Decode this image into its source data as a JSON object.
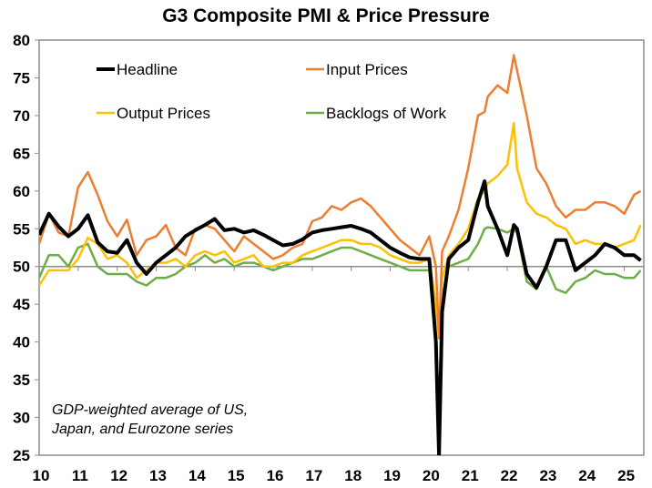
{
  "chart_data": {
    "type": "line",
    "title": "G3 Composite PMI & Price Pressure",
    "xlabel": "",
    "ylabel": "",
    "ylim": [
      25,
      80
    ],
    "yticks": [
      25,
      30,
      35,
      40,
      45,
      50,
      55,
      60,
      65,
      70,
      75,
      80
    ],
    "xlim": [
      2010.0,
      2025.5
    ],
    "xtick_labels": [
      "10",
      "11",
      "12",
      "13",
      "14",
      "15",
      "16",
      "17",
      "18",
      "19",
      "20",
      "21",
      "22",
      "23",
      "24",
      "25"
    ],
    "reference_line": 50,
    "grid": false,
    "legend_placement": "top-left, two columns",
    "annotation": [
      "GDP-weighted average of US,",
      "Japan, and Eurozone series"
    ],
    "x": [
      2010.0,
      2010.25,
      2010.5,
      2010.75,
      2011.0,
      2011.25,
      2011.5,
      2011.75,
      2012.0,
      2012.25,
      2012.5,
      2012.75,
      2013.0,
      2013.25,
      2013.5,
      2013.75,
      2014.0,
      2014.25,
      2014.5,
      2014.75,
      2015.0,
      2015.25,
      2015.5,
      2015.75,
      2016.0,
      2016.25,
      2016.5,
      2016.75,
      2017.0,
      2017.25,
      2017.5,
      2017.75,
      2018.0,
      2018.25,
      2018.5,
      2018.75,
      2019.0,
      2019.25,
      2019.5,
      2019.75,
      2020.0,
      2020.17,
      2020.25,
      2020.33,
      2020.5,
      2020.75,
      2021.0,
      2021.25,
      2021.42,
      2021.5,
      2021.75,
      2022.0,
      2022.17,
      2022.25,
      2022.5,
      2022.75,
      2023.0,
      2023.25,
      2023.5,
      2023.75,
      2024.0,
      2024.25,
      2024.5,
      2024.75,
      2025.0,
      2025.25,
      2025.42
    ],
    "series": [
      {
        "name": "Headline",
        "color": "#000000",
        "values": [
          54.2,
          57.0,
          55.3,
          54.0,
          55.0,
          56.8,
          53.2,
          52.0,
          51.8,
          53.5,
          50.5,
          49.0,
          50.5,
          51.5,
          52.5,
          54.0,
          54.8,
          55.5,
          56.3,
          54.8,
          55.0,
          54.5,
          54.8,
          54.2,
          53.5,
          52.8,
          53.0,
          53.6,
          54.5,
          54.8,
          55.0,
          55.2,
          55.4,
          55.0,
          54.5,
          53.5,
          52.5,
          51.8,
          51.2,
          51.0,
          51.0,
          40.0,
          25.0,
          44.0,
          51.0,
          52.5,
          53.5,
          58.5,
          61.3,
          58.0,
          55.0,
          51.5,
          55.5,
          55.0,
          49.0,
          47.2,
          50.0,
          53.5,
          53.5,
          49.5,
          50.5,
          51.5,
          53.0,
          52.5,
          51.5,
          51.5,
          50.8
        ]
      },
      {
        "name": "Input Prices",
        "color": "#ED7D31",
        "values": [
          53.0,
          57.0,
          54.5,
          54.0,
          60.5,
          62.5,
          59.5,
          56.0,
          54.0,
          56.2,
          51.5,
          53.5,
          54.0,
          55.5,
          52.5,
          51.5,
          55.0,
          55.5,
          55.0,
          53.5,
          52.0,
          54.0,
          53.0,
          52.0,
          51.0,
          51.5,
          52.5,
          53.0,
          56.0,
          56.5,
          58.0,
          57.5,
          58.5,
          59.0,
          58.0,
          56.5,
          55.0,
          53.5,
          52.5,
          51.5,
          54.0,
          50.0,
          40.5,
          52.0,
          54.0,
          57.5,
          63.0,
          70.0,
          70.5,
          72.5,
          74.0,
          73.0,
          78.0,
          76.0,
          70.0,
          63.0,
          61.0,
          58.0,
          56.5,
          57.5,
          57.5,
          58.5,
          58.5,
          58.0,
          57.0,
          59.5,
          60.0
        ]
      },
      {
        "name": "Output Prices",
        "color": "#FFC000",
        "values": [
          47.5,
          49.5,
          49.5,
          49.5,
          51.0,
          53.8,
          53.0,
          51.0,
          51.5,
          50.5,
          48.5,
          49.5,
          50.5,
          50.5,
          51.0,
          50.0,
          51.5,
          52.0,
          51.5,
          52.0,
          50.5,
          51.0,
          51.5,
          50.0,
          50.0,
          50.5,
          50.5,
          51.5,
          52.0,
          52.5,
          53.0,
          53.5,
          53.5,
          53.0,
          53.0,
          52.5,
          51.5,
          51.0,
          50.5,
          50.5,
          51.0,
          45.0,
          40.5,
          48.5,
          51.5,
          53.0,
          55.0,
          59.0,
          60.0,
          61.0,
          62.0,
          63.5,
          69.0,
          63.0,
          58.5,
          57.0,
          56.5,
          55.5,
          55.0,
          53.0,
          53.5,
          53.0,
          53.0,
          52.5,
          53.0,
          53.5,
          55.5
        ]
      },
      {
        "name": "Backlogs of Work",
        "color": "#70AD47",
        "values": [
          48.5,
          51.5,
          51.5,
          50.0,
          52.5,
          53.0,
          50.0,
          49.0,
          49.0,
          49.0,
          48.0,
          47.5,
          48.5,
          48.5,
          49.0,
          50.0,
          50.5,
          51.5,
          50.5,
          51.0,
          50.0,
          50.5,
          50.5,
          50.0,
          49.5,
          50.0,
          50.5,
          51.0,
          51.0,
          51.5,
          52.0,
          52.5,
          52.5,
          52.0,
          51.5,
          51.0,
          50.5,
          50.0,
          49.5,
          49.5,
          49.5,
          40.0,
          31.3,
          46.0,
          50.0,
          50.5,
          51.0,
          53.0,
          55.0,
          55.2,
          55.0,
          54.5,
          55.0,
          54.5,
          48.0,
          47.0,
          50.0,
          47.0,
          46.5,
          48.0,
          48.5,
          49.5,
          49.0,
          49.0,
          48.5,
          48.5,
          49.5
        ]
      }
    ]
  }
}
